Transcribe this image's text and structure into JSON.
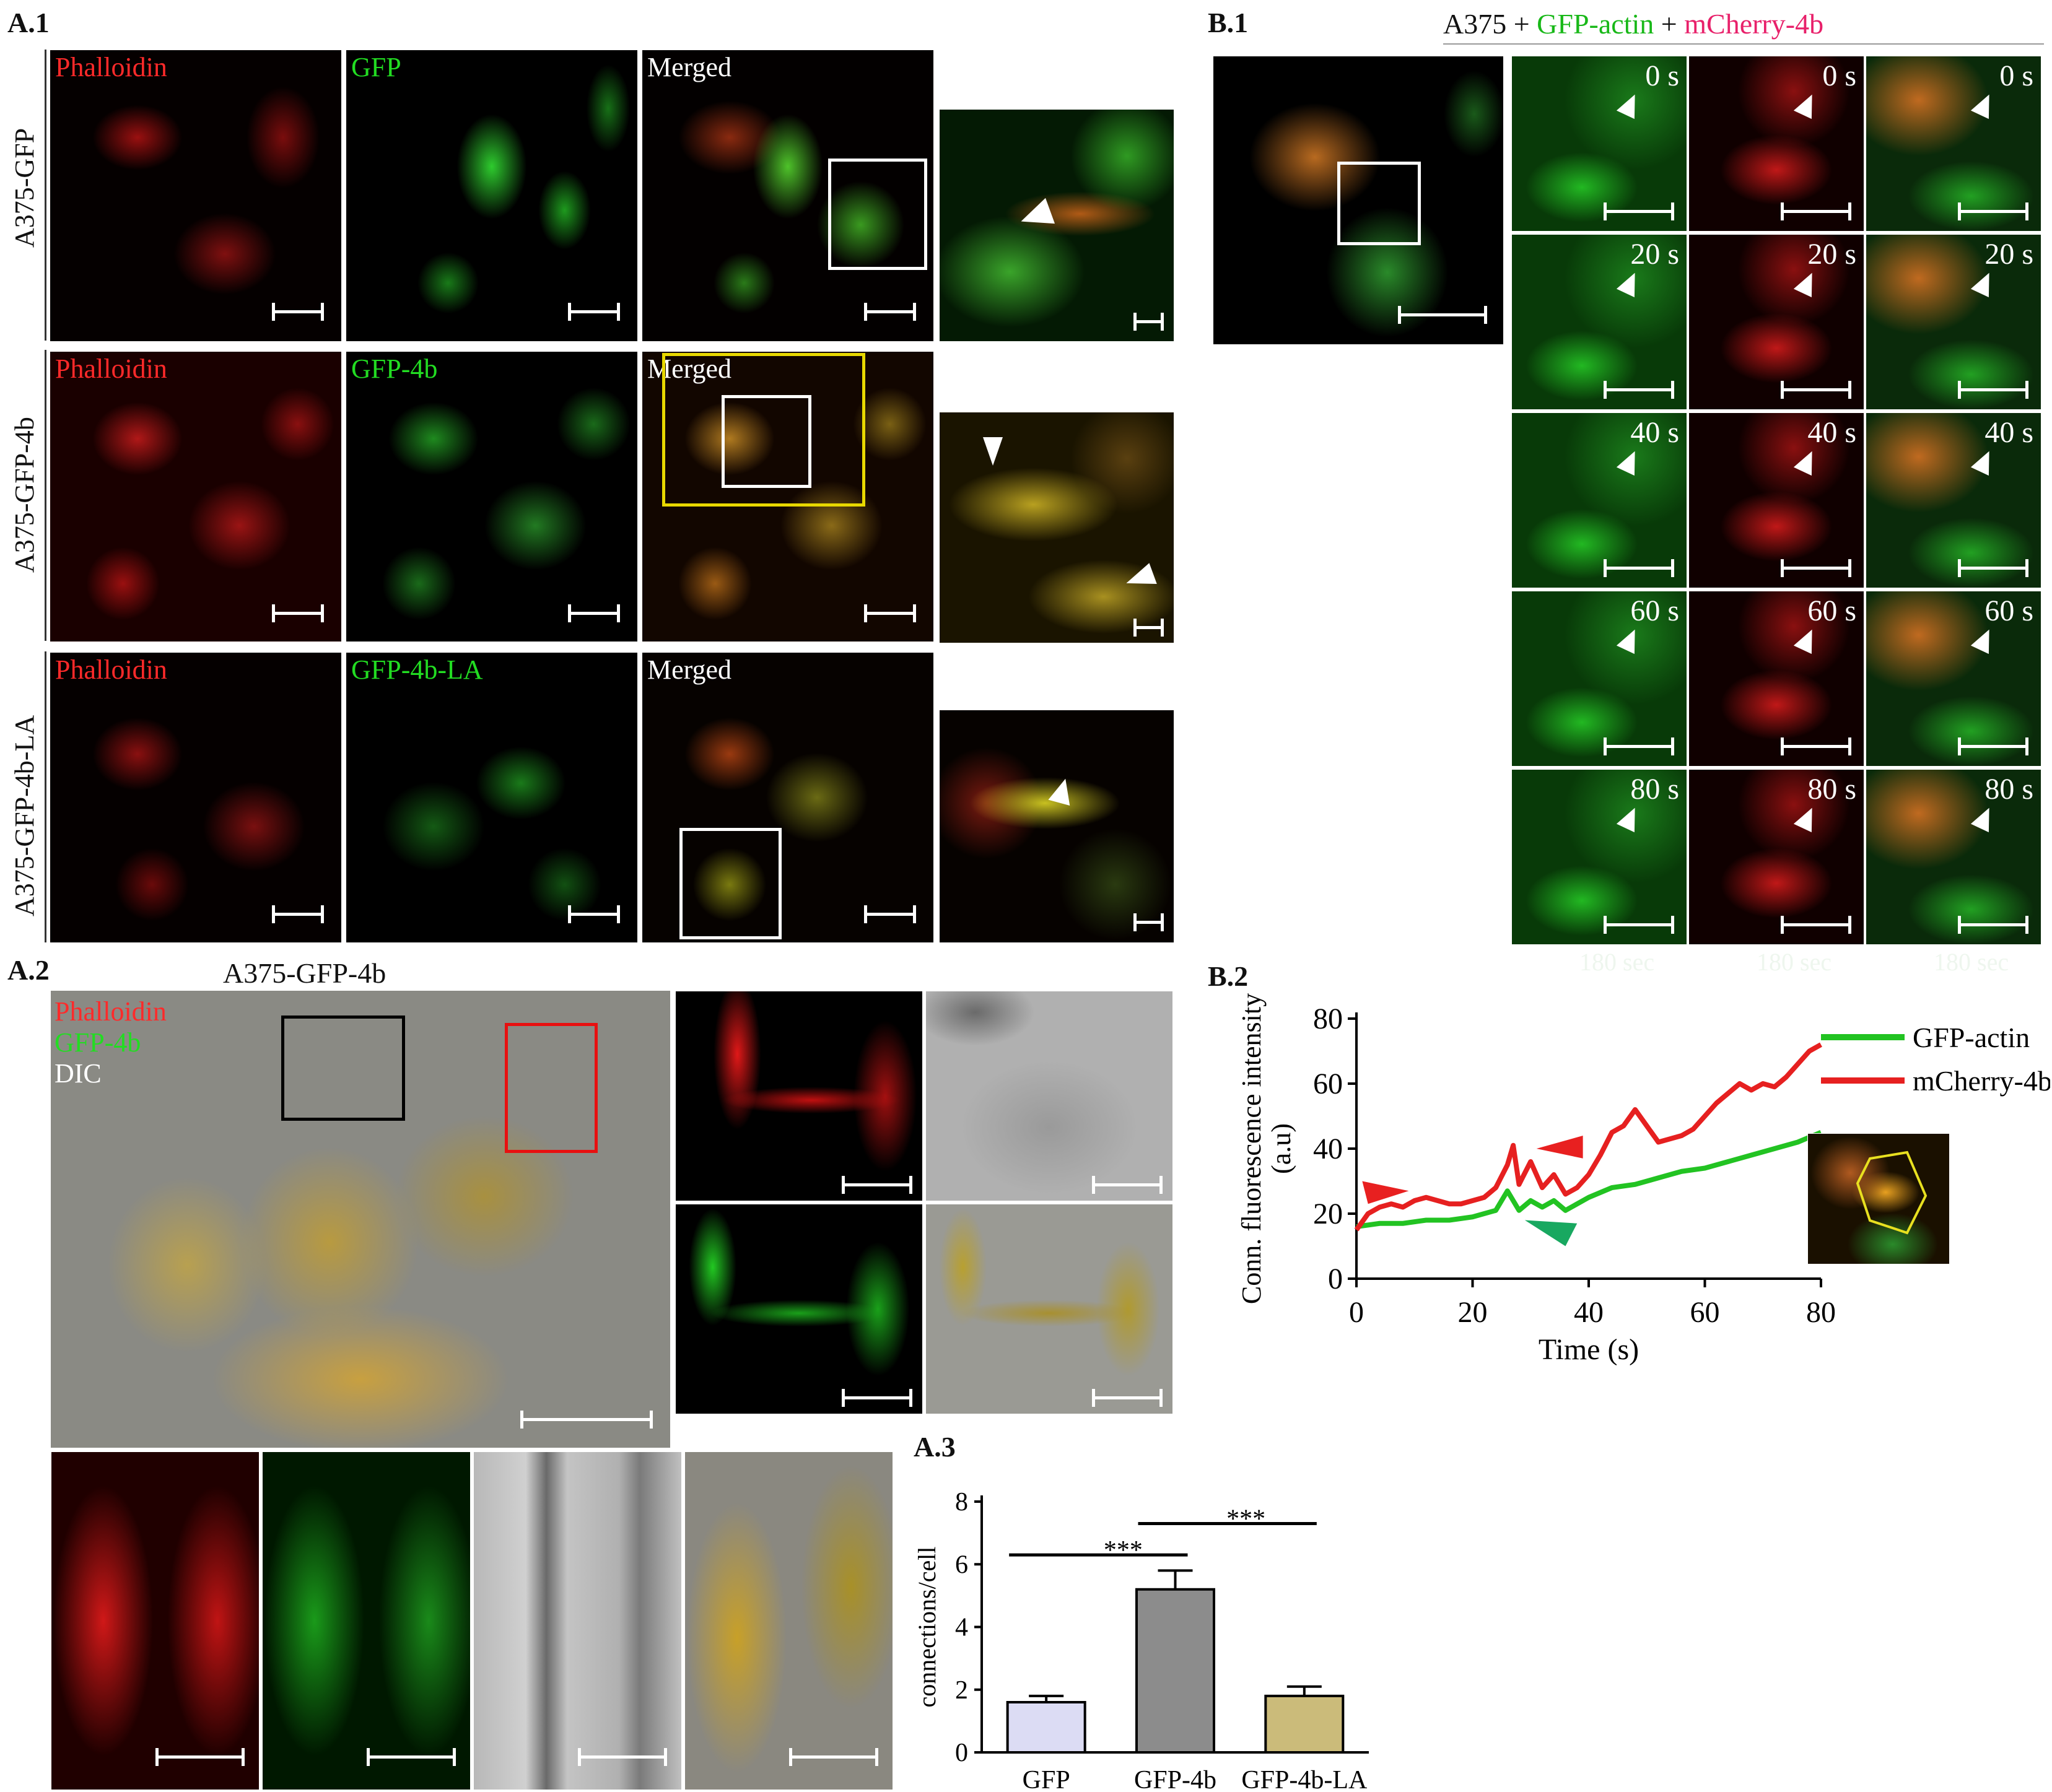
{
  "panel_labels": {
    "a1": "A.1",
    "a2": "A.2",
    "a3": "A.3",
    "b1": "B.1",
    "b2": "B.2"
  },
  "a1": {
    "rows": [
      {
        "label": "A375-GFP",
        "channels": [
          "Phalloidin",
          "GFP",
          "Merged"
        ]
      },
      {
        "label": "A375-GFP-4b",
        "channels": [
          "Phalloidin",
          "GFP-4b",
          "Merged"
        ]
      },
      {
        "label": "A375-GFP-4b-LA",
        "channels": [
          "Phalloidin",
          "GFP-4b-LA",
          "Merged"
        ]
      }
    ]
  },
  "a2": {
    "title": "A375-GFP-4b",
    "legend": {
      "red": "Phalloidin",
      "green": "GFP-4b",
      "white": "DIC"
    }
  },
  "b1": {
    "title_prefix": "A375 + ",
    "title_green": "GFP-actin",
    "title_mid": " + ",
    "title_red": "mCherry-4b",
    "times": [
      "0 s",
      "20 s",
      "40 s",
      "60 s",
      "80 s"
    ],
    "caption": "180 sec"
  },
  "colors": {
    "red": "#e82020",
    "green": "#18b818",
    "phalloidin": "#ff2a2a",
    "gfp": "#22dd22"
  },
  "chart_data": [
    {
      "type": "line",
      "panel": "B.2",
      "xlabel": "Time (s)",
      "ylabel": "Conn. fluorescence intensity (a.u)",
      "xlim": [
        0,
        80
      ],
      "ylim": [
        0,
        80
      ],
      "xticks": [
        "0",
        "20",
        "40",
        "60",
        "80"
      ],
      "yticks": [
        "0",
        "20",
        "40",
        "60",
        "80"
      ],
      "legend_placement": "top-right",
      "series": [
        {
          "name": "GFP-actin",
          "color": "#22c322",
          "x": [
            0,
            4,
            8,
            12,
            16,
            20,
            24,
            26,
            28,
            30,
            32,
            34,
            36,
            40,
            44,
            48,
            52,
            56,
            60,
            64,
            68,
            72,
            76,
            80
          ],
          "y": [
            16,
            17,
            17,
            18,
            18,
            19,
            21,
            27,
            21,
            24,
            22,
            24,
            21,
            25,
            28,
            29,
            31,
            33,
            34,
            36,
            38,
            40,
            42,
            45
          ]
        },
        {
          "name": "mCherry-4b",
          "color": "#e62020",
          "x": [
            0,
            2,
            4,
            6,
            8,
            10,
            12,
            14,
            16,
            18,
            20,
            22,
            24,
            26,
            27,
            28,
            30,
            32,
            34,
            36,
            38,
            40,
            42,
            44,
            46,
            48,
            50,
            52,
            54,
            56,
            58,
            60,
            62,
            64,
            66,
            68,
            70,
            72,
            74,
            76,
            78,
            80
          ],
          "y": [
            15,
            20,
            22,
            23,
            22,
            24,
            25,
            24,
            23,
            23,
            24,
            25,
            28,
            35,
            41,
            29,
            36,
            28,
            32,
            26,
            28,
            32,
            38,
            45,
            47,
            52,
            47,
            42,
            43,
            44,
            46,
            50,
            54,
            57,
            60,
            58,
            60,
            59,
            62,
            66,
            70,
            72
          ]
        }
      ]
    },
    {
      "type": "bar",
      "panel": "A.3",
      "ylabel": "connections/cell",
      "categories": [
        "GFP",
        "GFP-4b",
        "GFP-4b-LA"
      ],
      "values": [
        1.6,
        5.2,
        1.8
      ],
      "errors": [
        0.2,
        0.6,
        0.3
      ],
      "colors": [
        "#dcdcf4",
        "#8c8c8c",
        "#cbbb7a"
      ],
      "ylim": [
        0,
        8
      ],
      "yticks": [
        "0",
        "2",
        "4",
        "6",
        "8"
      ],
      "significance": [
        {
          "pair": [
            "GFP",
            "GFP-4b"
          ],
          "label": "***"
        },
        {
          "pair": [
            "GFP-4b",
            "GFP-4b-LA"
          ],
          "label": "***"
        }
      ]
    }
  ]
}
